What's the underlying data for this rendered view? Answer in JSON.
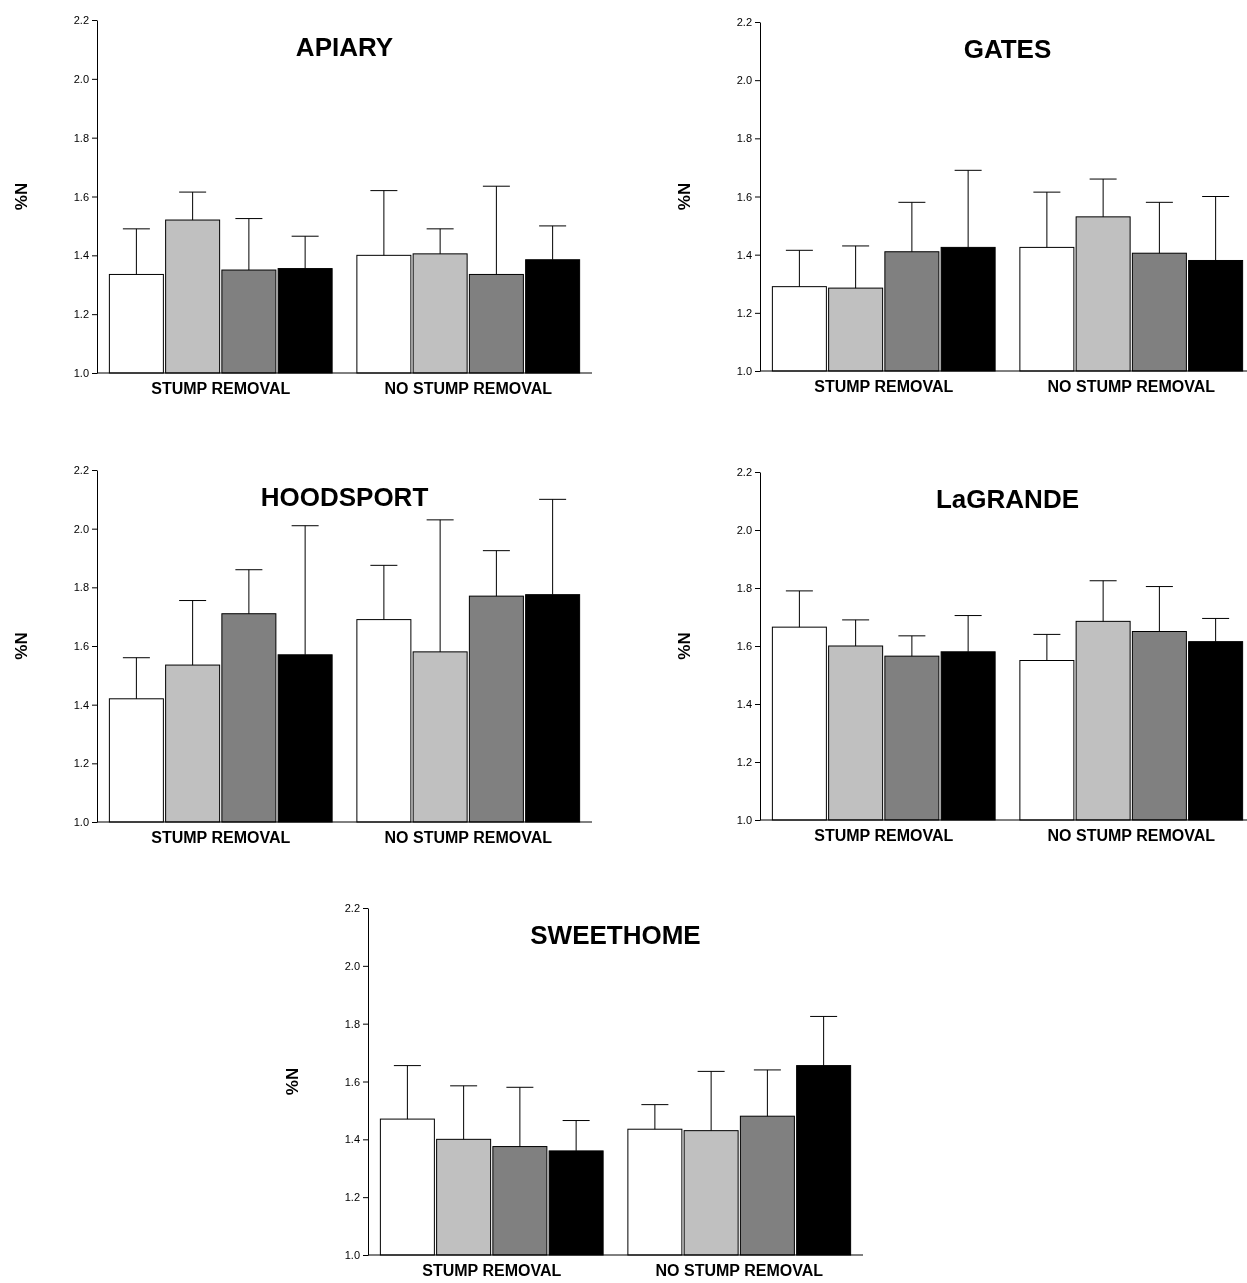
{
  "chart_data": [
    {
      "type": "bar",
      "title": "APIARY",
      "ylabel": "%N",
      "categories": [
        "STUMP REMOVAL",
        "NO STUMP REMOVAL"
      ],
      "ylim": [
        1.0,
        2.2
      ],
      "yticks": [
        {
          "value": 1.0,
          "label": "1.0"
        },
        {
          "value": 1.2,
          "label": "1.2"
        },
        {
          "value": 1.4,
          "label": "1.4"
        },
        {
          "value": 1.6,
          "label": "1.6"
        },
        {
          "value": 1.8,
          "label": "1.8"
        },
        {
          "value": 2.0,
          "label": "2.0"
        },
        {
          "value": 2.2,
          "label": "2.2"
        }
      ],
      "series": [
        {
          "color": "#ffffff",
          "values": [
            1.335,
            1.4
          ],
          "errors": [
            [
              1.335,
              1.49
            ],
            [
              1.4,
              1.62
            ]
          ]
        },
        {
          "color": "#c0c0c0",
          "values": [
            1.52,
            1.405
          ],
          "errors": [
            [
              1.52,
              1.615
            ],
            [
              1.405,
              1.49
            ]
          ]
        },
        {
          "color": "#808080",
          "values": [
            1.35,
            1.335
          ],
          "errors": [
            [
              1.35,
              1.525
            ],
            [
              1.335,
              1.635
            ]
          ]
        },
        {
          "color": "#000000",
          "values": [
            1.355,
            1.385
          ],
          "errors": [
            [
              1.355,
              1.465
            ],
            [
              1.385,
              1.5
            ]
          ]
        }
      ]
    },
    {
      "type": "bar",
      "title": "GATES",
      "ylabel": "%N",
      "categories": [
        "STUMP REMOVAL",
        "NO STUMP REMOVAL"
      ],
      "ylim": [
        1.0,
        2.2
      ],
      "yticks": [
        {
          "value": 1.0,
          "label": "1.0"
        },
        {
          "value": 1.2,
          "label": "1.2"
        },
        {
          "value": 1.4,
          "label": "1.4"
        },
        {
          "value": 1.6,
          "label": "1.6"
        },
        {
          "value": 1.8,
          "label": "1.8"
        },
        {
          "value": 2.0,
          "label": "2.0"
        },
        {
          "value": 2.2,
          "label": "2.2"
        }
      ],
      "series": [
        {
          "color": "#ffffff",
          "values": [
            1.29,
            1.425
          ],
          "errors": [
            [
              1.29,
              1.415
            ],
            [
              1.425,
              1.615
            ]
          ]
        },
        {
          "color": "#c0c0c0",
          "values": [
            1.285,
            1.53
          ],
          "errors": [
            [
              1.285,
              1.43
            ],
            [
              1.53,
              1.66
            ]
          ]
        },
        {
          "color": "#808080",
          "values": [
            1.41,
            1.405
          ],
          "errors": [
            [
              1.41,
              1.58
            ],
            [
              1.405,
              1.58
            ]
          ]
        },
        {
          "color": "#000000",
          "values": [
            1.425,
            1.38
          ],
          "errors": [
            [
              1.425,
              1.69
            ],
            [
              1.38,
              1.6
            ]
          ]
        }
      ]
    },
    {
      "type": "bar",
      "title": "HOODSPORT",
      "ylabel": "%N",
      "categories": [
        "STUMP REMOVAL",
        "NO STUMP REMOVAL"
      ],
      "ylim": [
        1.0,
        2.2
      ],
      "yticks": [
        {
          "value": 1.0,
          "label": "1.0"
        },
        {
          "value": 1.2,
          "label": "1.2"
        },
        {
          "value": 1.4,
          "label": "1.4"
        },
        {
          "value": 1.6,
          "label": "1.6"
        },
        {
          "value": 1.8,
          "label": "1.8"
        },
        {
          "value": 2.0,
          "label": "2.0"
        },
        {
          "value": 2.2,
          "label": "2.2"
        }
      ],
      "series": [
        {
          "color": "#ffffff",
          "values": [
            1.42,
            1.69
          ],
          "errors": [
            [
              1.42,
              1.56
            ],
            [
              1.69,
              1.875
            ]
          ]
        },
        {
          "color": "#c0c0c0",
          "values": [
            1.535,
            1.58
          ],
          "errors": [
            [
              1.535,
              1.755
            ],
            [
              1.58,
              2.03
            ]
          ]
        },
        {
          "color": "#808080",
          "values": [
            1.71,
            1.77
          ],
          "errors": [
            [
              1.71,
              1.86
            ],
            [
              1.77,
              1.925
            ]
          ]
        },
        {
          "color": "#000000",
          "values": [
            1.57,
            1.775
          ],
          "errors": [
            [
              1.57,
              2.01
            ],
            [
              1.775,
              2.1
            ]
          ]
        }
      ]
    },
    {
      "type": "bar",
      "title": "LaGRANDE",
      "ylabel": "%N",
      "categories": [
        "STUMP REMOVAL",
        "NO STUMP REMOVAL"
      ],
      "ylim": [
        1.0,
        2.2
      ],
      "yticks": [
        {
          "value": 1.0,
          "label": "1.0"
        },
        {
          "value": 1.2,
          "label": "1.2"
        },
        {
          "value": 1.4,
          "label": "1.4"
        },
        {
          "value": 1.6,
          "label": "1.6"
        },
        {
          "value": 1.8,
          "label": "1.8"
        },
        {
          "value": 2.0,
          "label": "2.0"
        },
        {
          "value": 2.2,
          "label": "2.2"
        }
      ],
      "series": [
        {
          "color": "#ffffff",
          "values": [
            1.665,
            1.55
          ],
          "errors": [
            [
              1.665,
              1.79
            ],
            [
              1.55,
              1.64
            ]
          ]
        },
        {
          "color": "#c0c0c0",
          "values": [
            1.6,
            1.685
          ],
          "errors": [
            [
              1.6,
              1.69
            ],
            [
              1.685,
              1.825
            ]
          ]
        },
        {
          "color": "#808080",
          "values": [
            1.565,
            1.65
          ],
          "errors": [
            [
              1.565,
              1.635
            ],
            [
              1.65,
              1.805
            ]
          ]
        },
        {
          "color": "#000000",
          "values": [
            1.58,
            1.615
          ],
          "errors": [
            [
              1.58,
              1.705
            ],
            [
              1.615,
              1.695
            ]
          ]
        }
      ]
    },
    {
      "type": "bar",
      "title": "SWEETHOME",
      "ylabel": "%N",
      "categories": [
        "STUMP REMOVAL",
        "NO STUMP REMOVAL"
      ],
      "ylim": [
        1.0,
        2.2
      ],
      "yticks": [
        {
          "value": 1.0,
          "label": "1.0"
        },
        {
          "value": 1.2,
          "label": "1.2"
        },
        {
          "value": 1.4,
          "label": "1.4"
        },
        {
          "value": 1.6,
          "label": "1.6"
        },
        {
          "value": 1.8,
          "label": "1.8"
        },
        {
          "value": 2.0,
          "label": "2.0"
        },
        {
          "value": 2.2,
          "label": "2.2"
        }
      ],
      "series": [
        {
          "color": "#ffffff",
          "values": [
            1.47,
            1.435
          ],
          "errors": [
            [
              1.47,
              1.655
            ],
            [
              1.435,
              1.52
            ]
          ]
        },
        {
          "color": "#c0c0c0",
          "values": [
            1.4,
            1.43
          ],
          "errors": [
            [
              1.4,
              1.585
            ],
            [
              1.43,
              1.635
            ]
          ]
        },
        {
          "color": "#808080",
          "values": [
            1.375,
            1.48
          ],
          "errors": [
            [
              1.375,
              1.58
            ],
            [
              1.48,
              1.64
            ]
          ]
        },
        {
          "color": "#000000",
          "values": [
            1.36,
            1.655
          ],
          "errors": [
            [
              1.36,
              1.465
            ],
            [
              1.655,
              1.825
            ]
          ]
        }
      ]
    }
  ]
}
